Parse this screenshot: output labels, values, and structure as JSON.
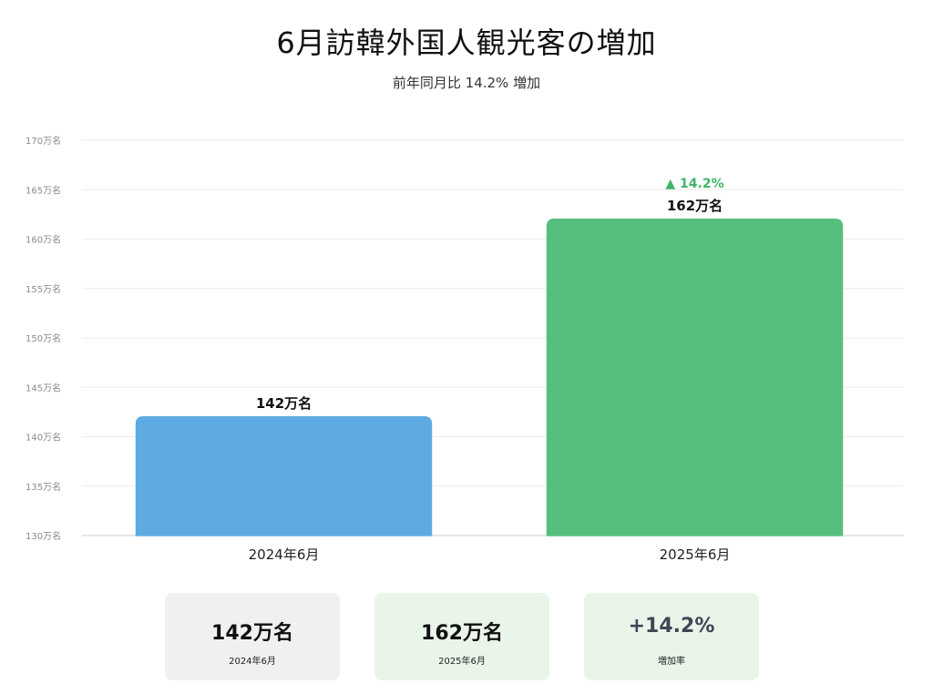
{
  "title": "6月訪韓外国人観光客の増加",
  "subtitle": "前年同月比 14.2% 増加",
  "chart_data": {
    "type": "bar",
    "categories": [
      "2024年6月",
      "2025年6月"
    ],
    "values": [
      142,
      162
    ],
    "value_labels": [
      "142万名",
      "162万名"
    ],
    "unit_suffix": "万名",
    "ylim": [
      130,
      170
    ],
    "yticks": [
      130,
      135,
      140,
      145,
      150,
      155,
      160,
      165,
      170
    ],
    "ytick_labels": [
      "130万名",
      "135万名",
      "140万名",
      "145万名",
      "150万名",
      "155万名",
      "160万名",
      "165万名",
      "170万名"
    ],
    "change_label": "▲ 14.2%",
    "grid": true,
    "colors": [
      "#5dabe2",
      "#56bf7e"
    ],
    "change_color": "#3fb56a"
  },
  "cards": [
    {
      "value": "142万名",
      "label": "2024年6月"
    },
    {
      "value": "162万名",
      "label": "2025年6月"
    },
    {
      "value": "+14.2%",
      "label": "増加率"
    }
  ]
}
